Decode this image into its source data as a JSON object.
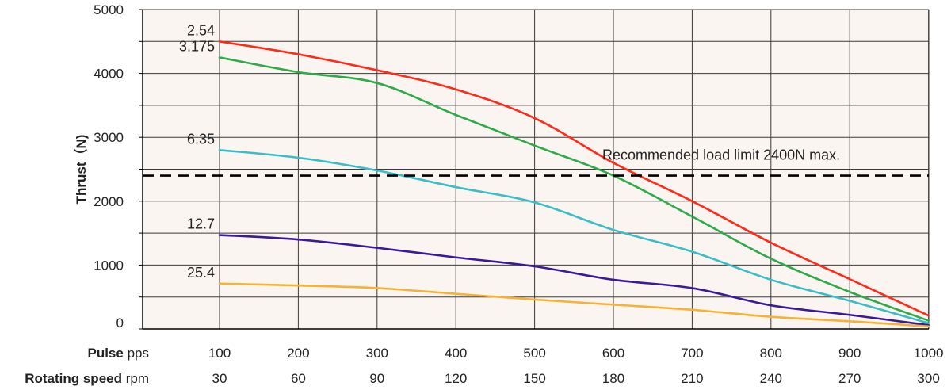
{
  "chart_data": {
    "type": "line",
    "ylabel": "Thrust（N)",
    "ylim": [
      0,
      5000
    ],
    "y_ticks": [
      0,
      1000,
      2000,
      3000,
      4000,
      5000
    ],
    "y_tick_labels": [
      "0",
      "1000",
      "2000",
      "3000",
      "4000",
      "5000"
    ],
    "x": [
      100,
      200,
      300,
      400,
      500,
      600,
      700,
      800,
      900,
      1000
    ],
    "xlim": [
      0,
      1000
    ],
    "x_axis_rows": [
      {
        "label_bold": "Pulse",
        "label_unit": "pps",
        "ticks": [
          "100",
          "200",
          "300",
          "400",
          "500",
          "600",
          "700",
          "800",
          "900",
          "1000"
        ]
      },
      {
        "label_bold": "Rotating speed",
        "label_unit": "rpm",
        "ticks": [
          "30",
          "60",
          "90",
          "120",
          "150",
          "180",
          "210",
          "240",
          "270",
          "300"
        ]
      }
    ],
    "grid": true,
    "series": [
      {
        "name": "2.54",
        "color": "#ff2a1a",
        "values": [
          4500,
          4300,
          4050,
          3750,
          3300,
          2600,
          2000,
          1350,
          780,
          210
        ]
      },
      {
        "name": "3.175",
        "color": "#2eaa4a",
        "values": [
          4250,
          4020,
          3850,
          3350,
          2870,
          2400,
          1760,
          1100,
          580,
          130
        ]
      },
      {
        "name": "6.35",
        "color": "#3bbdc8",
        "values": [
          2800,
          2680,
          2480,
          2220,
          1980,
          1550,
          1210,
          770,
          440,
          90
        ]
      },
      {
        "name": "12.7",
        "color": "#3a1a96",
        "values": [
          1470,
          1400,
          1270,
          1120,
          980,
          770,
          640,
          370,
          220,
          60
        ]
      },
      {
        "name": "25.4",
        "color": "#f5b234",
        "values": [
          710,
          680,
          640,
          550,
          460,
          380,
          300,
          190,
          120,
          40
        ]
      }
    ],
    "reference_line": {
      "y": 2400,
      "label": "Recommended load limit 2400N max.",
      "style": "dashed",
      "color": "#000000"
    }
  }
}
